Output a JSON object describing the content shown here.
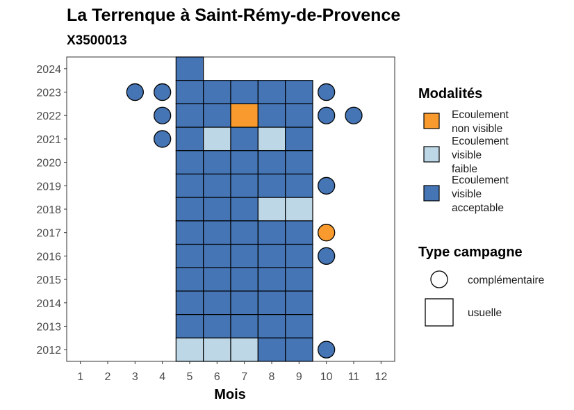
{
  "chart_data": {
    "type": "heatmap",
    "title": "La Terrenque à Saint-Rémy-de-Provence",
    "subtitle": "X3500013",
    "xlabel": "Mois",
    "ylabel": "",
    "x_ticks": [
      "1",
      "2",
      "3",
      "4",
      "5",
      "6",
      "7",
      "8",
      "9",
      "10",
      "11",
      "12"
    ],
    "y_ticks": [
      "2012",
      "2013",
      "2014",
      "2015",
      "2016",
      "2017",
      "2018",
      "2019",
      "2020",
      "2021",
      "2022",
      "2023",
      "2024"
    ],
    "xlim": [
      0.5,
      12.5
    ],
    "ylim": [
      2011.5,
      2024.5
    ],
    "grid": false,
    "legend_position": "right",
    "colors": {
      "Ecoulement non visible": "#f89a2e",
      "Ecoulement visible faible": "#bdd7e7",
      "Ecoulement visible acceptable": "#4575b4"
    },
    "legends": [
      {
        "title": "Modalités",
        "entries": [
          {
            "key": "Ecoulement non visible",
            "lines": [
              "Ecoulement",
              "non visible"
            ]
          },
          {
            "key": "Ecoulement visible faible",
            "lines": [
              "Ecoulement",
              "visible",
              "faible"
            ]
          },
          {
            "key": "Ecoulement visible acceptable",
            "lines": [
              "Ecoulement",
              "visible",
              "acceptable"
            ]
          }
        ]
      },
      {
        "title": "Type campagne",
        "entries": [
          {
            "shape": "circle",
            "label": "complémentaire"
          },
          {
            "shape": "square",
            "label": "usuelle"
          }
        ]
      }
    ],
    "points": [
      {
        "year": 2024,
        "month": 5,
        "type": "usuelle",
        "value": "Ecoulement visible acceptable"
      },
      {
        "year": 2023,
        "month": 3,
        "type": "complémentaire",
        "value": "Ecoulement visible acceptable"
      },
      {
        "year": 2023,
        "month": 4,
        "type": "complémentaire",
        "value": "Ecoulement visible acceptable"
      },
      {
        "year": 2023,
        "month": 5,
        "type": "usuelle",
        "value": "Ecoulement visible acceptable"
      },
      {
        "year": 2023,
        "month": 6,
        "type": "usuelle",
        "value": "Ecoulement visible acceptable"
      },
      {
        "year": 2023,
        "month": 7,
        "type": "usuelle",
        "value": "Ecoulement visible acceptable"
      },
      {
        "year": 2023,
        "month": 8,
        "type": "usuelle",
        "value": "Ecoulement visible acceptable"
      },
      {
        "year": 2023,
        "month": 9,
        "type": "usuelle",
        "value": "Ecoulement visible acceptable"
      },
      {
        "year": 2023,
        "month": 10,
        "type": "complémentaire",
        "value": "Ecoulement visible acceptable"
      },
      {
        "year": 2022,
        "month": 4,
        "type": "complémentaire",
        "value": "Ecoulement visible acceptable"
      },
      {
        "year": 2022,
        "month": 5,
        "type": "usuelle",
        "value": "Ecoulement visible acceptable"
      },
      {
        "year": 2022,
        "month": 6,
        "type": "usuelle",
        "value": "Ecoulement visible acceptable"
      },
      {
        "year": 2022,
        "month": 7,
        "type": "usuelle",
        "value": "Ecoulement non visible"
      },
      {
        "year": 2022,
        "month": 8,
        "type": "usuelle",
        "value": "Ecoulement visible acceptable"
      },
      {
        "year": 2022,
        "month": 9,
        "type": "usuelle",
        "value": "Ecoulement visible acceptable"
      },
      {
        "year": 2022,
        "month": 10,
        "type": "complémentaire",
        "value": "Ecoulement visible acceptable"
      },
      {
        "year": 2022,
        "month": 11,
        "type": "complémentaire",
        "value": "Ecoulement visible acceptable"
      },
      {
        "year": 2021,
        "month": 4,
        "type": "complémentaire",
        "value": "Ecoulement visible acceptable"
      },
      {
        "year": 2021,
        "month": 5,
        "type": "usuelle",
        "value": "Ecoulement visible acceptable"
      },
      {
        "year": 2021,
        "month": 6,
        "type": "usuelle",
        "value": "Ecoulement visible faible"
      },
      {
        "year": 2021,
        "month": 7,
        "type": "usuelle",
        "value": "Ecoulement visible acceptable"
      },
      {
        "year": 2021,
        "month": 8,
        "type": "usuelle",
        "value": "Ecoulement visible faible"
      },
      {
        "year": 2021,
        "month": 9,
        "type": "usuelle",
        "value": "Ecoulement visible acceptable"
      },
      {
        "year": 2020,
        "month": 5,
        "type": "usuelle",
        "value": "Ecoulement visible acceptable"
      },
      {
        "year": 2020,
        "month": 6,
        "type": "usuelle",
        "value": "Ecoulement visible acceptable"
      },
      {
        "year": 2020,
        "month": 7,
        "type": "usuelle",
        "value": "Ecoulement visible acceptable"
      },
      {
        "year": 2020,
        "month": 8,
        "type": "usuelle",
        "value": "Ecoulement visible acceptable"
      },
      {
        "year": 2020,
        "month": 9,
        "type": "usuelle",
        "value": "Ecoulement visible acceptable"
      },
      {
        "year": 2019,
        "month": 5,
        "type": "usuelle",
        "value": "Ecoulement visible acceptable"
      },
      {
        "year": 2019,
        "month": 6,
        "type": "usuelle",
        "value": "Ecoulement visible acceptable"
      },
      {
        "year": 2019,
        "month": 7,
        "type": "usuelle",
        "value": "Ecoulement visible acceptable"
      },
      {
        "year": 2019,
        "month": 8,
        "type": "usuelle",
        "value": "Ecoulement visible acceptable"
      },
      {
        "year": 2019,
        "month": 9,
        "type": "usuelle",
        "value": "Ecoulement visible acceptable"
      },
      {
        "year": 2019,
        "month": 10,
        "type": "complémentaire",
        "value": "Ecoulement visible acceptable"
      },
      {
        "year": 2018,
        "month": 5,
        "type": "usuelle",
        "value": "Ecoulement visible acceptable"
      },
      {
        "year": 2018,
        "month": 6,
        "type": "usuelle",
        "value": "Ecoulement visible acceptable"
      },
      {
        "year": 2018,
        "month": 7,
        "type": "usuelle",
        "value": "Ecoulement visible acceptable"
      },
      {
        "year": 2018,
        "month": 8,
        "type": "usuelle",
        "value": "Ecoulement visible faible"
      },
      {
        "year": 2018,
        "month": 9,
        "type": "usuelle",
        "value": "Ecoulement visible faible"
      },
      {
        "year": 2017,
        "month": 5,
        "type": "usuelle",
        "value": "Ecoulement visible acceptable"
      },
      {
        "year": 2017,
        "month": 6,
        "type": "usuelle",
        "value": "Ecoulement visible acceptable"
      },
      {
        "year": 2017,
        "month": 7,
        "type": "usuelle",
        "value": "Ecoulement visible acceptable"
      },
      {
        "year": 2017,
        "month": 8,
        "type": "usuelle",
        "value": "Ecoulement visible acceptable"
      },
      {
        "year": 2017,
        "month": 9,
        "type": "usuelle",
        "value": "Ecoulement visible acceptable"
      },
      {
        "year": 2017,
        "month": 10,
        "type": "complémentaire",
        "value": "Ecoulement non visible"
      },
      {
        "year": 2016,
        "month": 5,
        "type": "usuelle",
        "value": "Ecoulement visible acceptable"
      },
      {
        "year": 2016,
        "month": 6,
        "type": "usuelle",
        "value": "Ecoulement visible acceptable"
      },
      {
        "year": 2016,
        "month": 7,
        "type": "usuelle",
        "value": "Ecoulement visible acceptable"
      },
      {
        "year": 2016,
        "month": 8,
        "type": "usuelle",
        "value": "Ecoulement visible acceptable"
      },
      {
        "year": 2016,
        "month": 9,
        "type": "usuelle",
        "value": "Ecoulement visible acceptable"
      },
      {
        "year": 2016,
        "month": 10,
        "type": "complémentaire",
        "value": "Ecoulement visible acceptable"
      },
      {
        "year": 2015,
        "month": 5,
        "type": "usuelle",
        "value": "Ecoulement visible acceptable"
      },
      {
        "year": 2015,
        "month": 6,
        "type": "usuelle",
        "value": "Ecoulement visible acceptable"
      },
      {
        "year": 2015,
        "month": 7,
        "type": "usuelle",
        "value": "Ecoulement visible acceptable"
      },
      {
        "year": 2015,
        "month": 8,
        "type": "usuelle",
        "value": "Ecoulement visible acceptable"
      },
      {
        "year": 2015,
        "month": 9,
        "type": "usuelle",
        "value": "Ecoulement visible acceptable"
      },
      {
        "year": 2014,
        "month": 5,
        "type": "usuelle",
        "value": "Ecoulement visible acceptable"
      },
      {
        "year": 2014,
        "month": 6,
        "type": "usuelle",
        "value": "Ecoulement visible acceptable"
      },
      {
        "year": 2014,
        "month": 7,
        "type": "usuelle",
        "value": "Ecoulement visible acceptable"
      },
      {
        "year": 2014,
        "month": 8,
        "type": "usuelle",
        "value": "Ecoulement visible acceptable"
      },
      {
        "year": 2014,
        "month": 9,
        "type": "usuelle",
        "value": "Ecoulement visible acceptable"
      },
      {
        "year": 2013,
        "month": 5,
        "type": "usuelle",
        "value": "Ecoulement visible acceptable"
      },
      {
        "year": 2013,
        "month": 6,
        "type": "usuelle",
        "value": "Ecoulement visible acceptable"
      },
      {
        "year": 2013,
        "month": 7,
        "type": "usuelle",
        "value": "Ecoulement visible acceptable"
      },
      {
        "year": 2013,
        "month": 8,
        "type": "usuelle",
        "value": "Ecoulement visible acceptable"
      },
      {
        "year": 2013,
        "month": 9,
        "type": "usuelle",
        "value": "Ecoulement visible acceptable"
      },
      {
        "year": 2012,
        "month": 5,
        "type": "usuelle",
        "value": "Ecoulement visible faible"
      },
      {
        "year": 2012,
        "month": 6,
        "type": "usuelle",
        "value": "Ecoulement visible faible"
      },
      {
        "year": 2012,
        "month": 7,
        "type": "usuelle",
        "value": "Ecoulement visible faible"
      },
      {
        "year": 2012,
        "month": 8,
        "type": "usuelle",
        "value": "Ecoulement visible acceptable"
      },
      {
        "year": 2012,
        "month": 9,
        "type": "usuelle",
        "value": "Ecoulement visible acceptable"
      },
      {
        "year": 2012,
        "month": 10,
        "type": "complémentaire",
        "value": "Ecoulement visible acceptable"
      }
    ]
  }
}
